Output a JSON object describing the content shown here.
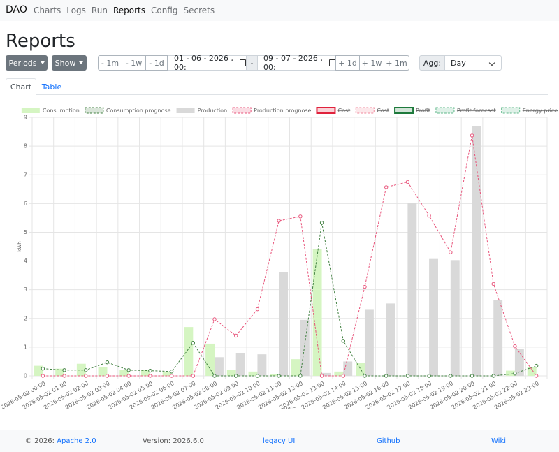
{
  "nav": {
    "brand": "DAO",
    "links": [
      "Charts",
      "Logs",
      "Run",
      "Reports",
      "Config",
      "Secrets"
    ],
    "active": 3
  },
  "page": {
    "title": "Reports"
  },
  "controls": {
    "periods": "Periods",
    "show": "Show",
    "back": [
      "- 1m",
      "- 1w",
      "- 1d"
    ],
    "start": "01 - 06 - 2026 , 00:",
    "separator": "-",
    "end": "09 - 07 - 2026 , 00:",
    "forward": [
      "+ 1d",
      "+ 1w",
      "+ 1m"
    ],
    "agg_label": "Agg:",
    "agg": "Day"
  },
  "tabs": {
    "items": [
      "Chart",
      "Table"
    ],
    "active": 0
  },
  "chart_data": {
    "type": "bar",
    "ylabel": "kWh",
    "xlabel": "Date",
    "grid": true,
    "ylim": [
      0,
      9
    ],
    "yticks": [
      0,
      1,
      2,
      3,
      4,
      5,
      6,
      7,
      8,
      9
    ],
    "categories": [
      "2026-05-02 00:00",
      "2026-05-02 01:00",
      "2026-05-02 02:00",
      "2026-05-02 03:00",
      "2026-05-02 04:00",
      "2026-05-02 05:00",
      "2026-05-02 06:00",
      "2026-05-02 07:00",
      "2026-05-02 08:00",
      "2026-05-02 09:00",
      "2026-05-02 10:00",
      "2026-05-02 11:00",
      "2026-05-02 12:00",
      "2026-05-02 13:00",
      "2026-05-02 14:00",
      "2026-05-02 15:00",
      "2026-05-02 16:00",
      "2026-05-02 17:00",
      "2026-05-02 18:00",
      "2026-05-02 19:00",
      "2026-05-02 20:00",
      "2026-05-02 21:00",
      "2026-05-02 22:00",
      "2026-05-02 23:00"
    ],
    "series": [
      {
        "name": "Consumption",
        "type": "bar",
        "color": "#d5f5c2",
        "values": [
          0.35,
          0.25,
          0.42,
          0.3,
          0.2,
          0.2,
          0.15,
          1.7,
          1.12,
          0.2,
          0.15,
          0.05,
          0.58,
          4.42,
          0.15,
          0.45,
          0,
          0,
          0,
          0,
          0,
          0,
          0.18,
          0.3
        ]
      },
      {
        "name": "Consumption prognose",
        "type": "line",
        "dashed": true,
        "color": "#3f7f3f",
        "values": [
          0.25,
          0.2,
          0.2,
          0.47,
          0.2,
          0.18,
          0.15,
          1.15,
          0,
          0,
          0,
          0,
          0,
          5.33,
          1.22,
          0,
          0,
          0,
          0,
          0,
          0,
          0,
          0.08,
          0.35
        ]
      },
      {
        "name": "Production",
        "type": "bar",
        "color": "#d9d9d9",
        "values": [
          0,
          0,
          0,
          0,
          0,
          0,
          0,
          0,
          0.65,
          0.8,
          0.75,
          3.62,
          1.95,
          0.1,
          0.5,
          2.3,
          2.52,
          6.02,
          4.07,
          4.03,
          8.7,
          2.63,
          0.93,
          0
        ]
      },
      {
        "name": "Production prognose",
        "type": "line",
        "dashed": true,
        "color": "#e8537a",
        "values": [
          0,
          0,
          0,
          0,
          0,
          0,
          0,
          0,
          1.97,
          1.4,
          2.32,
          5.4,
          5.55,
          0,
          0,
          3.1,
          6.57,
          6.75,
          5.58,
          4.3,
          8.37,
          3.2,
          1.03,
          0
        ]
      }
    ],
    "hidden_series": [
      {
        "name": "Cost",
        "color": "#e0223c",
        "dashed": false
      },
      {
        "name": "Cost",
        "color": "#f08a9c",
        "dashed": true
      },
      {
        "name": "Profit",
        "color": "#1e7a3c",
        "dashed": false
      },
      {
        "name": "Profit forecast",
        "color": "#5fb88a",
        "dashed": true
      },
      {
        "name": "Energy price",
        "color": "#5fb88a",
        "dashed": true
      }
    ]
  },
  "footer": {
    "copyright": "© 2026:",
    "license": "Apache 2.0",
    "version": "Version: 2026.6.0",
    "links": [
      "legacy UI",
      "Github",
      "Wiki"
    ]
  }
}
